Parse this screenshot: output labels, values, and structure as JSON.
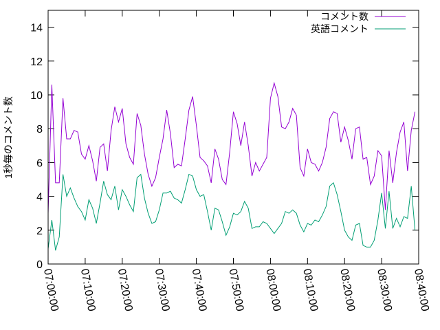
{
  "chart_data": {
    "type": "line",
    "ylabel": "1秒毎のコメント数",
    "xlabel": "",
    "ylim": [
      0,
      15
    ],
    "yticks": [
      0,
      2,
      4,
      6,
      8,
      10,
      12,
      14
    ],
    "xlim": [
      "07:00:00",
      "08:40:00"
    ],
    "xticks": [
      "07:00:00",
      "07:10:00",
      "07:20:00",
      "07:30:00",
      "07:40:00",
      "07:50:00",
      "08:00:00",
      "08:10:00",
      "08:20:00",
      "08:30:00",
      "08:40:00"
    ],
    "grid": false,
    "legend_position": "top-right",
    "series": [
      {
        "name": "コメント数",
        "color": "#9400d3",
        "points": [
          [
            "07:00:00",
            3.0
          ],
          [
            "07:01:00",
            10.6
          ],
          [
            "07:02:00",
            4.8
          ],
          [
            "07:03:00",
            4.8
          ],
          [
            "07:04:00",
            9.8
          ],
          [
            "07:05:00",
            7.4
          ],
          [
            "07:06:00",
            7.4
          ],
          [
            "07:07:00",
            7.9
          ],
          [
            "07:08:00",
            7.8
          ],
          [
            "07:09:00",
            6.5
          ],
          [
            "07:10:00",
            6.2
          ],
          [
            "07:11:00",
            7.0
          ],
          [
            "07:12:00",
            6.1
          ],
          [
            "07:13:00",
            4.9
          ],
          [
            "07:14:00",
            6.9
          ],
          [
            "07:15:00",
            7.1
          ],
          [
            "07:16:00",
            5.5
          ],
          [
            "07:17:00",
            7.9
          ],
          [
            "07:18:00",
            9.3
          ],
          [
            "07:19:00",
            8.4
          ],
          [
            "07:20:00",
            9.2
          ],
          [
            "07:21:00",
            7.1
          ],
          [
            "07:22:00",
            6.3
          ],
          [
            "07:23:00",
            5.9
          ],
          [
            "07:24:00",
            8.9
          ],
          [
            "07:25:00",
            8.2
          ],
          [
            "07:26:00",
            6.5
          ],
          [
            "07:27:00",
            5.3
          ],
          [
            "07:28:00",
            4.6
          ],
          [
            "07:29:00",
            5.1
          ],
          [
            "07:30:00",
            6.3
          ],
          [
            "07:31:00",
            7.4
          ],
          [
            "07:32:00",
            9.1
          ],
          [
            "07:33:00",
            7.7
          ],
          [
            "07:34:00",
            5.7
          ],
          [
            "07:35:00",
            5.9
          ],
          [
            "07:36:00",
            5.8
          ],
          [
            "07:37:00",
            7.4
          ],
          [
            "07:38:00",
            9.1
          ],
          [
            "07:39:00",
            9.9
          ],
          [
            "07:40:00",
            8.2
          ],
          [
            "07:41:00",
            6.3
          ],
          [
            "07:42:00",
            6.1
          ],
          [
            "07:43:00",
            5.8
          ],
          [
            "07:44:00",
            4.8
          ],
          [
            "07:45:00",
            6.8
          ],
          [
            "07:46:00",
            6.2
          ],
          [
            "07:47:00",
            5.0
          ],
          [
            "07:48:00",
            4.7
          ],
          [
            "07:49:00",
            6.6
          ],
          [
            "07:50:00",
            9.0
          ],
          [
            "07:51:00",
            8.3
          ],
          [
            "07:52:00",
            7.0
          ],
          [
            "07:53:00",
            8.4
          ],
          [
            "07:54:00",
            7.0
          ],
          [
            "07:55:00",
            5.2
          ],
          [
            "07:56:00",
            6.0
          ],
          [
            "07:57:00",
            5.5
          ],
          [
            "07:58:00",
            5.9
          ],
          [
            "07:59:00",
            6.3
          ],
          [
            "08:00:00",
            9.8
          ],
          [
            "08:01:00",
            10.7
          ],
          [
            "08:02:00",
            9.9
          ],
          [
            "08:03:00",
            8.1
          ],
          [
            "08:04:00",
            8.0
          ],
          [
            "08:05:00",
            8.4
          ],
          [
            "08:06:00",
            9.2
          ],
          [
            "08:07:00",
            8.8
          ],
          [
            "08:08:00",
            5.7
          ],
          [
            "08:09:00",
            5.2
          ],
          [
            "08:10:00",
            6.8
          ],
          [
            "08:11:00",
            6.0
          ],
          [
            "08:12:00",
            5.9
          ],
          [
            "08:13:00",
            5.5
          ],
          [
            "08:14:00",
            6.0
          ],
          [
            "08:15:00",
            6.9
          ],
          [
            "08:16:00",
            8.6
          ],
          [
            "08:17:00",
            9.0
          ],
          [
            "08:18:00",
            8.9
          ],
          [
            "08:19:00",
            7.2
          ],
          [
            "08:20:00",
            8.1
          ],
          [
            "08:21:00",
            7.3
          ],
          [
            "08:22:00",
            6.2
          ],
          [
            "08:23:00",
            8.0
          ],
          [
            "08:24:00",
            8.1
          ],
          [
            "08:25:00",
            6.2
          ],
          [
            "08:26:00",
            6.3
          ],
          [
            "08:27:00",
            4.7
          ],
          [
            "08:28:00",
            5.2
          ],
          [
            "08:29:00",
            6.7
          ],
          [
            "08:30:00",
            6.4
          ],
          [
            "08:31:00",
            3.2
          ],
          [
            "08:32:00",
            6.7
          ],
          [
            "08:33:00",
            4.8
          ],
          [
            "08:34:00",
            6.6
          ],
          [
            "08:35:00",
            7.8
          ],
          [
            "08:36:00",
            8.4
          ],
          [
            "08:37:00",
            5.5
          ],
          [
            "08:38:00",
            7.9
          ],
          [
            "08:39:00",
            9.0
          ]
        ]
      },
      {
        "name": "英語コメント",
        "color": "#009e73",
        "points": [
          [
            "07:00:00",
            0.9
          ],
          [
            "07:01:00",
            2.6
          ],
          [
            "07:02:00",
            0.8
          ],
          [
            "07:03:00",
            1.6
          ],
          [
            "07:04:00",
            5.3
          ],
          [
            "07:05:00",
            4.0
          ],
          [
            "07:06:00",
            4.5
          ],
          [
            "07:07:00",
            3.9
          ],
          [
            "07:08:00",
            3.4
          ],
          [
            "07:09:00",
            3.1
          ],
          [
            "07:10:00",
            2.6
          ],
          [
            "07:11:00",
            3.8
          ],
          [
            "07:12:00",
            3.3
          ],
          [
            "07:13:00",
            2.4
          ],
          [
            "07:14:00",
            3.6
          ],
          [
            "07:15:00",
            4.9
          ],
          [
            "07:16:00",
            4.1
          ],
          [
            "07:17:00",
            3.8
          ],
          [
            "07:18:00",
            4.6
          ],
          [
            "07:19:00",
            3.2
          ],
          [
            "07:20:00",
            4.4
          ],
          [
            "07:21:00",
            4.0
          ],
          [
            "07:22:00",
            3.5
          ],
          [
            "07:23:00",
            3.1
          ],
          [
            "07:24:00",
            5.1
          ],
          [
            "07:25:00",
            5.3
          ],
          [
            "07:26:00",
            3.9
          ],
          [
            "07:27:00",
            3.0
          ],
          [
            "07:28:00",
            2.4
          ],
          [
            "07:29:00",
            2.5
          ],
          [
            "07:30:00",
            3.2
          ],
          [
            "07:31:00",
            4.2
          ],
          [
            "07:32:00",
            4.2
          ],
          [
            "07:33:00",
            4.3
          ],
          [
            "07:34:00",
            3.9
          ],
          [
            "07:35:00",
            3.8
          ],
          [
            "07:36:00",
            3.6
          ],
          [
            "07:37:00",
            4.4
          ],
          [
            "07:38:00",
            5.3
          ],
          [
            "07:39:00",
            5.2
          ],
          [
            "07:40:00",
            4.4
          ],
          [
            "07:41:00",
            4.0
          ],
          [
            "07:42:00",
            4.1
          ],
          [
            "07:43:00",
            3.1
          ],
          [
            "07:44:00",
            2.0
          ],
          [
            "07:45:00",
            3.3
          ],
          [
            "07:46:00",
            3.2
          ],
          [
            "07:47:00",
            2.5
          ],
          [
            "07:48:00",
            1.7
          ],
          [
            "07:49:00",
            2.2
          ],
          [
            "07:50:00",
            3.0
          ],
          [
            "07:51:00",
            2.9
          ],
          [
            "07:52:00",
            3.1
          ],
          [
            "07:53:00",
            3.7
          ],
          [
            "07:54:00",
            3.3
          ],
          [
            "07:55:00",
            2.1
          ],
          [
            "07:56:00",
            2.2
          ],
          [
            "07:57:00",
            2.2
          ],
          [
            "07:58:00",
            2.5
          ],
          [
            "07:59:00",
            2.4
          ],
          [
            "08:00:00",
            2.1
          ],
          [
            "08:01:00",
            1.8
          ],
          [
            "08:02:00",
            2.1
          ],
          [
            "08:03:00",
            2.4
          ],
          [
            "08:04:00",
            3.1
          ],
          [
            "08:05:00",
            3.0
          ],
          [
            "08:06:00",
            3.2
          ],
          [
            "08:07:00",
            3.0
          ],
          [
            "08:08:00",
            2.3
          ],
          [
            "08:09:00",
            1.9
          ],
          [
            "08:10:00",
            2.4
          ],
          [
            "08:11:00",
            2.3
          ],
          [
            "08:12:00",
            2.6
          ],
          [
            "08:13:00",
            2.5
          ],
          [
            "08:14:00",
            2.9
          ],
          [
            "08:15:00",
            3.4
          ],
          [
            "08:16:00",
            4.6
          ],
          [
            "08:17:00",
            4.8
          ],
          [
            "08:18:00",
            4.1
          ],
          [
            "08:19:00",
            3.1
          ],
          [
            "08:20:00",
            2.0
          ],
          [
            "08:21:00",
            1.6
          ],
          [
            "08:22:00",
            1.4
          ],
          [
            "08:23:00",
            2.3
          ],
          [
            "08:24:00",
            2.4
          ],
          [
            "08:25:00",
            1.1
          ],
          [
            "08:26:00",
            1.0
          ],
          [
            "08:27:00",
            1.0
          ],
          [
            "08:28:00",
            1.4
          ],
          [
            "08:29:00",
            2.6
          ],
          [
            "08:30:00",
            4.2
          ],
          [
            "08:31:00",
            2.1
          ],
          [
            "08:32:00",
            4.3
          ],
          [
            "08:33:00",
            2.1
          ],
          [
            "08:34:00",
            2.7
          ],
          [
            "08:35:00",
            2.2
          ],
          [
            "08:36:00",
            2.8
          ],
          [
            "08:37:00",
            2.7
          ],
          [
            "08:38:00",
            4.6
          ],
          [
            "08:39:00",
            2.0
          ]
        ]
      }
    ]
  }
}
